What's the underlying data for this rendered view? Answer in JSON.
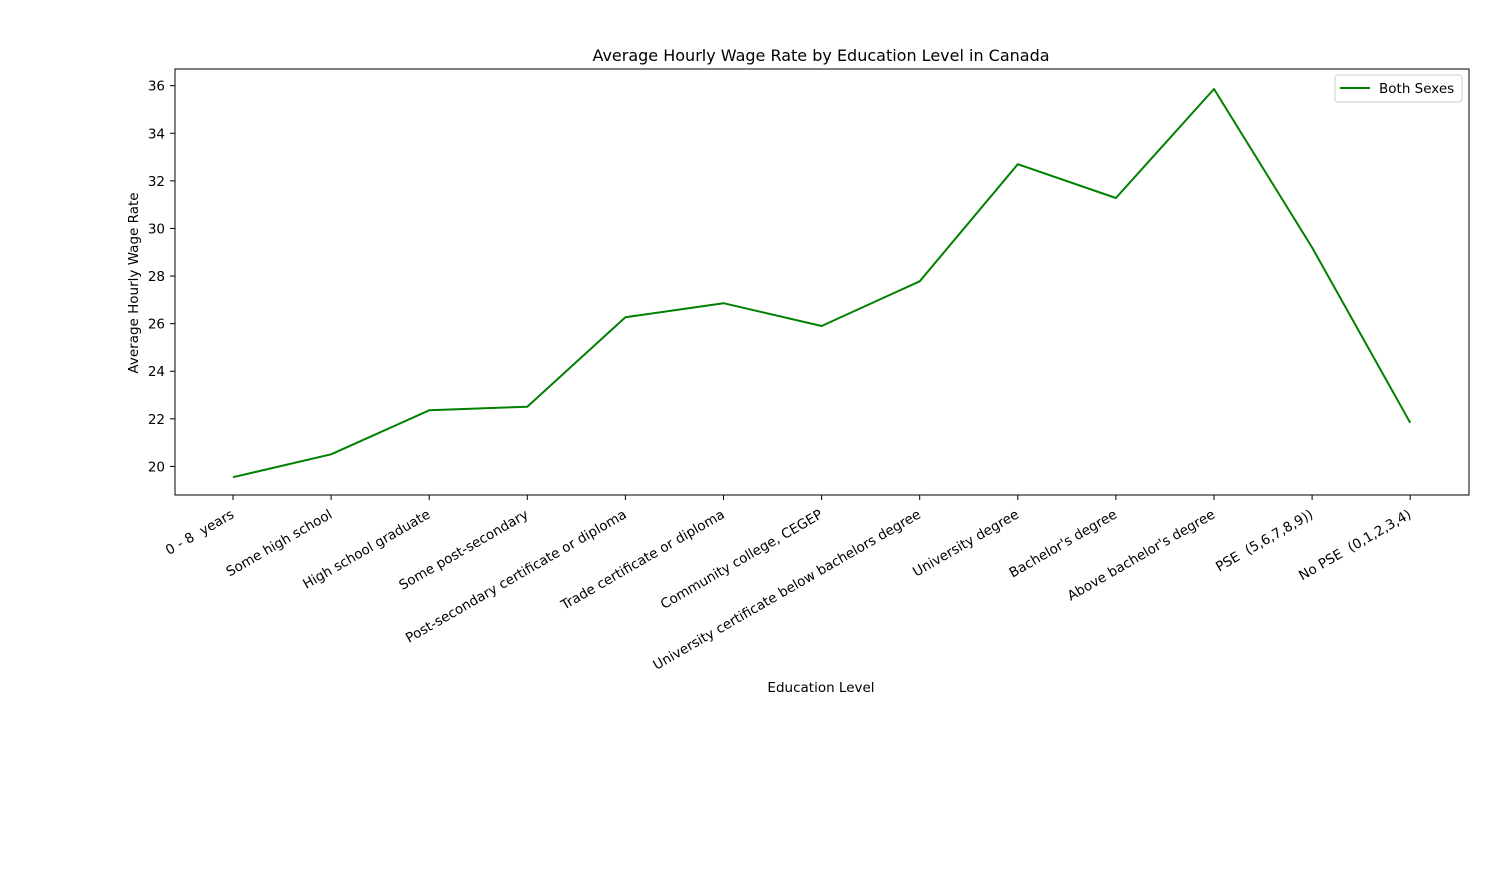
{
  "chart_data": {
    "type": "line",
    "title": "Average Hourly Wage Rate by Education Level in Canada",
    "xlabel": "Education Level",
    "ylabel": "Average Hourly Wage Rate",
    "categories": [
      "0 - 8  years",
      "Some high school",
      "High school graduate",
      "Some post-secondary",
      "Post-secondary certificate or diploma",
      "Trade certificate or diploma",
      "Community college, CEGEP",
      "University certificate below bachelors degree",
      "University degree",
      "Bachelor's degree",
      "Above bachelor's degree",
      "PSE  (5,6,7,8,9))",
      "No PSE  (0,1,2,3,4)"
    ],
    "series": [
      {
        "name": "Both Sexes",
        "color": "#008000",
        "values": [
          19.55,
          20.51,
          22.36,
          22.51,
          26.27,
          26.86,
          25.9,
          27.78,
          32.7,
          31.28,
          35.86,
          29.2,
          21.84
        ]
      }
    ],
    "ylim": [
      18.8,
      36.7
    ],
    "yticks": [
      20,
      22,
      24,
      26,
      28,
      30,
      32,
      34,
      36
    ],
    "grid": false,
    "legend_position": "upper right"
  }
}
